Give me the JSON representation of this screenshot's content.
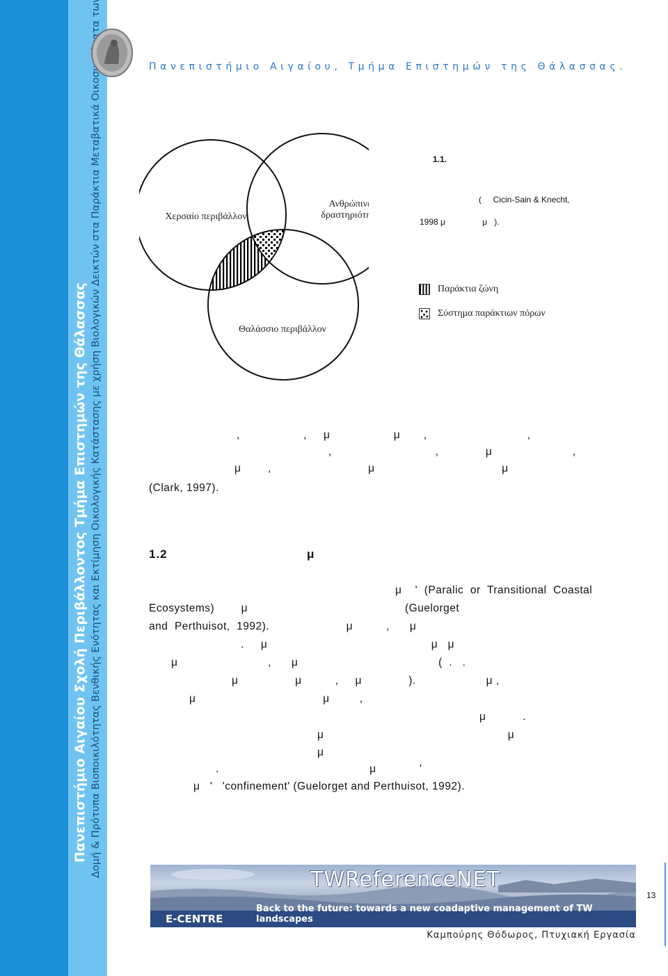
{
  "sidebar": {
    "line1": "Πανεπιστήμιο Αιγαίου Σχολή Περιβάλλοντος Τμήμα Επιστημών της Θάλασσας",
    "line2": "Δομή & Πρότυπα Βιοποικιλότητας Βενθικής Ενότητας και Εκτίμηση Οικολογικής Κατάστασης με χρήση Βιολογικών Δεικτών στα Παράκτια Μεταβατικά Οικοσυστήματα των Αλυκών Καλλονής Λέσβου."
  },
  "header": {
    "title": "Πανεπιστήμιο Αιγαίου, Τμήμα Επιστημών της Θάλασσας."
  },
  "figure": {
    "labels": {
      "land": "Χερσαίο περιβάλλον",
      "human_1": "Ανθρώπινες",
      "human_2": "δραστηριότητες",
      "sea": "Θαλάσσιο περιβάλλον"
    },
    "number": "1.1.",
    "caption_line1": "(     Cicin-Sain & Knecht,",
    "caption_line2": "1998 μ                μ   ).",
    "legend": [
      {
        "label": "Παράκτια ζώνη"
      },
      {
        "label": "Σύστημα παράκτιων πόρων"
      }
    ]
  },
  "paragraph1": [
    ",                   ,     μ                   μ       ,                              ,",
    ",                               ,              μ                        ,",
    "μ        ,                             μ                                      μ",
    "(Clark, 1997)."
  ],
  "section_heading": "1.2                                   μ",
  "paragraph2": [
    "μ    '  (Paralic  or  Transitional  Coastal",
    "Ecosystems)        μ                                               (Guelorget",
    "and  Perthuisot,  1992).                       μ          ,      μ",
    ".     μ                                                 μ   μ",
    "μ                           ,      μ                                          (  .   .",
    "μ                 μ          ,     μ              ).                     μ ,",
    "μ                                      μ         ,",
    "μ           .",
    "μ                                                       μ",
    "μ",
    ".                                             μ             '",
    "μ   '   'confinement' (Guelorget and Perthuisot, 1992)."
  ],
  "banner": {
    "brand": "TWReferenceNET",
    "ecentre": "E-CENTRE",
    "slogan": "Back to the future: towards a new coadaptive management of TW landscapes"
  },
  "page_number": "13",
  "footer": "Καμπούρης Θόδωρος, Πτυχιακή Εργασία",
  "colors": {
    "sidebar_dark": "#1b8fd6",
    "sidebar_light": "#6fc3f1",
    "header_text": "#2a78c8"
  }
}
